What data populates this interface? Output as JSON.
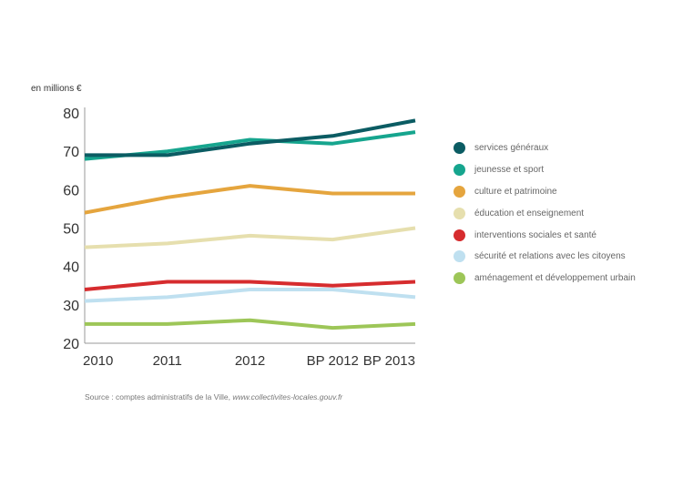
{
  "chart_data": {
    "type": "line",
    "title": "",
    "ylabel": "en millions €",
    "xlabel": "",
    "categories": [
      "2010",
      "2011",
      "2012",
      "BP 2012",
      "BP 2013"
    ],
    "ylim": [
      20,
      80
    ],
    "yticks": [
      20,
      30,
      40,
      50,
      60,
      70,
      80
    ],
    "grid": false,
    "legend_position": "right",
    "series": [
      {
        "name": "services généraux",
        "color": "#0b5c63",
        "values": [
          69,
          69,
          72,
          74,
          78
        ]
      },
      {
        "name": "jeunesse et sport",
        "color": "#16a58e",
        "values": [
          68,
          70,
          73,
          72,
          75
        ]
      },
      {
        "name": "culture et patrimoine",
        "color": "#e5a53e",
        "values": [
          54,
          58,
          61,
          59,
          59
        ]
      },
      {
        "name": "éducation et enseignement",
        "color": "#e6dfae",
        "values": [
          45,
          46,
          48,
          47,
          50
        ]
      },
      {
        "name": "interventions sociales et santé",
        "color": "#d62c2e",
        "values": [
          34,
          36,
          36,
          35,
          36
        ]
      },
      {
        "name": "sécurité et relations avec les citoyens",
        "color": "#bfe0f0",
        "values": [
          31,
          32,
          34,
          34,
          32
        ]
      },
      {
        "name": "aménagement et développement urbain",
        "color": "#9dc658",
        "values": [
          25,
          25,
          26,
          24,
          25
        ]
      }
    ]
  },
  "source": {
    "prefix": "Source : comptes administratifs de la Ville, ",
    "link": "www.collectivites-locales.gouv.fr"
  }
}
